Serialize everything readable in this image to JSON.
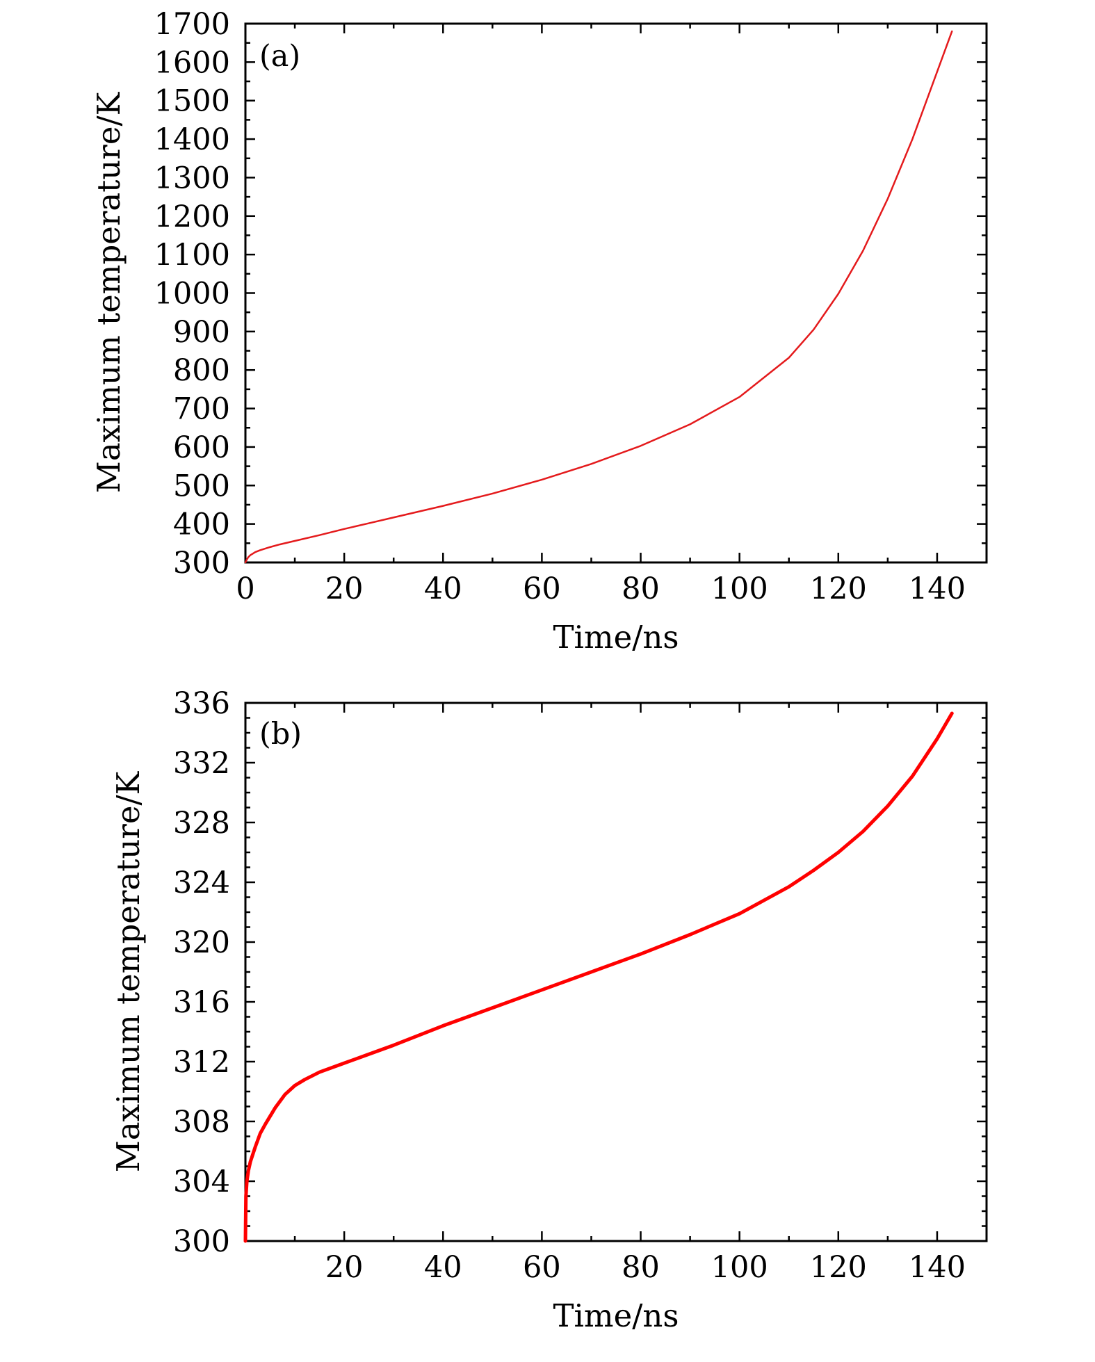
{
  "chart_data": [
    {
      "type": "line",
      "panel_label": "(a)",
      "xlabel": "Time/ns",
      "ylabel": "Maximum temperature/K",
      "xlim": [
        0,
        150
      ],
      "ylim": [
        300,
        1700
      ],
      "x_ticks": [
        0,
        20,
        40,
        60,
        80,
        100,
        120,
        140
      ],
      "y_ticks": [
        300,
        400,
        500,
        600,
        700,
        800,
        900,
        1000,
        1100,
        1200,
        1300,
        1400,
        1500,
        1600,
        1700
      ],
      "x_minor_step": 10,
      "y_minor_step": 50,
      "grid": false,
      "color": "#e41a1c",
      "line_width": 2.5,
      "series": [
        {
          "name": "Maximum temperature",
          "x": [
            0,
            0.3,
            0.6,
            1,
            1.5,
            2,
            3,
            4,
            5,
            7,
            10,
            15,
            20,
            25,
            30,
            40,
            50,
            60,
            70,
            80,
            90,
            100,
            110,
            115,
            120,
            125,
            130,
            135,
            140,
            143
          ],
          "y": [
            300,
            308,
            314,
            319,
            323,
            327,
            332,
            336,
            340,
            347,
            356,
            371,
            387,
            402,
            417,
            447,
            479,
            515,
            556,
            603,
            659,
            730,
            832,
            905,
            998,
            1110,
            1245,
            1400,
            1575,
            1680
          ]
        }
      ]
    },
    {
      "type": "line",
      "panel_label": "(b)",
      "xlabel": "Time/ns",
      "ylabel": "Maximum temperature/K",
      "xlim": [
        0,
        150
      ],
      "ylim": [
        300,
        336
      ],
      "x_ticks": [
        20,
        40,
        60,
        80,
        100,
        120,
        140
      ],
      "y_ticks": [
        300,
        304,
        308,
        312,
        316,
        320,
        324,
        328,
        332,
        336
      ],
      "x_minor_step": 10,
      "y_minor_step": 1,
      "grid": false,
      "color": "#ff0000",
      "line_width": 5,
      "series": [
        {
          "name": "Maximum temperature",
          "x": [
            0,
            0.1,
            0.3,
            0.6,
            1,
            2,
            3,
            4,
            6,
            8,
            10,
            12,
            15,
            20,
            25,
            30,
            40,
            50,
            60,
            70,
            80,
            90,
            100,
            110,
            115,
            120,
            125,
            130,
            135,
            140,
            143
          ],
          "y": [
            300,
            303,
            304,
            304.7,
            305.3,
            306.3,
            307.2,
            307.8,
            308.9,
            309.8,
            310.4,
            310.8,
            311.3,
            311.9,
            312.5,
            313.1,
            314.4,
            315.6,
            316.8,
            318.0,
            319.2,
            320.5,
            321.9,
            323.7,
            324.8,
            326.0,
            327.4,
            329.1,
            331.1,
            333.6,
            335.3
          ]
        }
      ]
    }
  ]
}
